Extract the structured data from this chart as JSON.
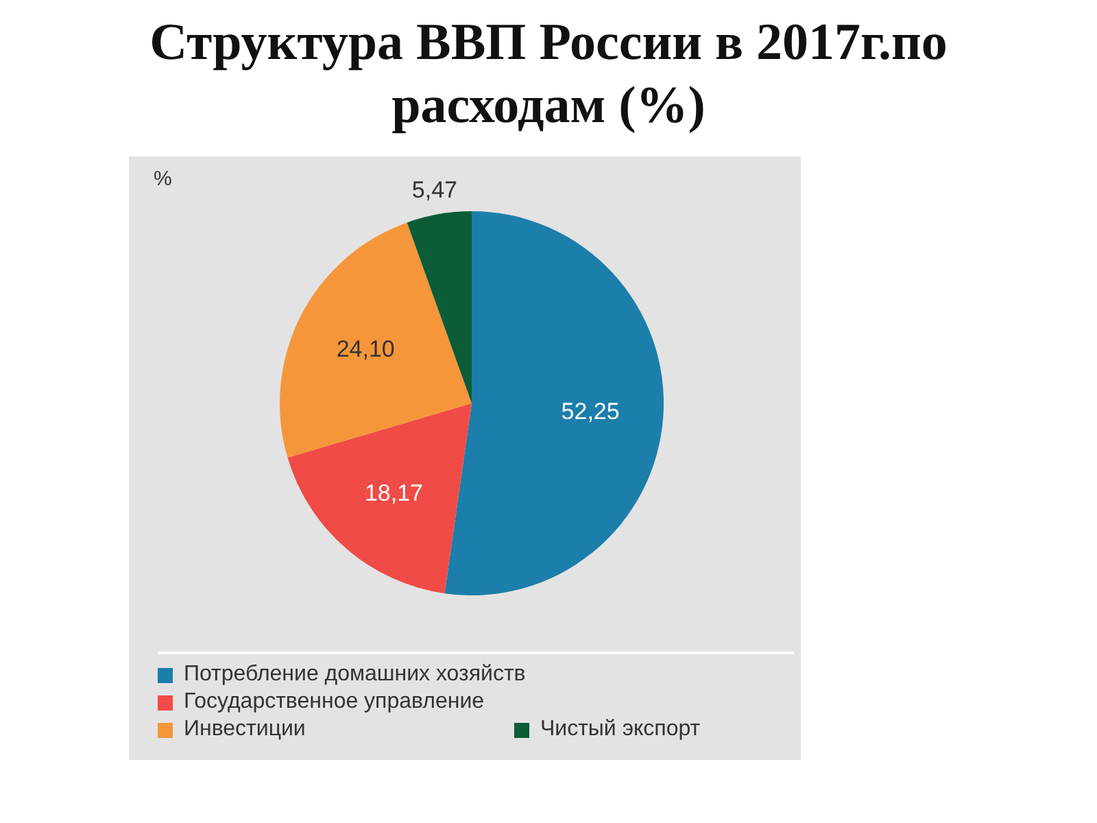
{
  "chart_data": {
    "type": "pie",
    "title": "Структура ВВП России в 2017г.по расходам (%)",
    "annotations": [
      "%"
    ],
    "categories": [
      "Потребление домашних хозяйств",
      "Государственное управление",
      "Инвестиции",
      "Чистый экспорт"
    ],
    "values": [
      52.25,
      18.17,
      24.1,
      5.47
    ],
    "value_labels": [
      "52,25",
      "18,17",
      "24,10",
      "5,47"
    ],
    "colors": [
      "#1c7eaa",
      "#f04b46",
      "#f6963a",
      "#0b5c37"
    ],
    "legend": "bottom"
  }
}
